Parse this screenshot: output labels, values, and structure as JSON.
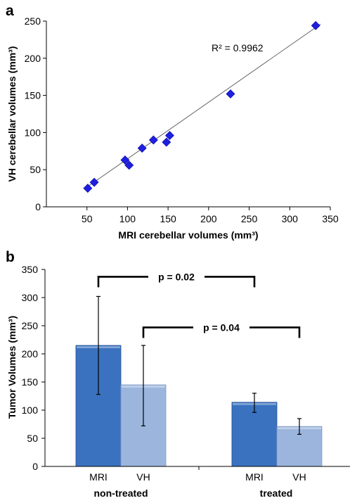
{
  "colors": {
    "scatter_marker": "#1f1fe0",
    "fit_line": "#555555",
    "mri_bar": "#3a72c0",
    "vh_bar": "#9cb5dd",
    "axis": "#000000"
  },
  "chart_data": [
    {
      "panel_label": "a",
      "type": "scatter",
      "xlabel": "MRI cerebellar volumes (mm³)",
      "ylabel": "VH cerebellar volumes (mm³)",
      "xlim": [
        0,
        350
      ],
      "ylim": [
        0,
        250
      ],
      "xticks": [
        50,
        100,
        150,
        200,
        250,
        300,
        350
      ],
      "yticks": [
        0,
        50,
        100,
        150,
        200,
        250
      ],
      "points": [
        {
          "x": 51,
          "y": 25
        },
        {
          "x": 59,
          "y": 33
        },
        {
          "x": 97,
          "y": 63
        },
        {
          "x": 102,
          "y": 56
        },
        {
          "x": 118,
          "y": 79
        },
        {
          "x": 132,
          "y": 90
        },
        {
          "x": 148,
          "y": 87
        },
        {
          "x": 152,
          "y": 96
        },
        {
          "x": 227,
          "y": 152
        },
        {
          "x": 332,
          "y": 244
        }
      ],
      "fit_line": {
        "x": [
          48,
          338
        ],
        "y": [
          25,
          246
        ]
      },
      "annotation": "R² = 0.9962",
      "grid": false
    },
    {
      "panel_label": "b",
      "type": "bar",
      "ylabel": "Tumor Volumes (mm³)",
      "ylim": [
        0,
        350
      ],
      "yticks": [
        0,
        50,
        100,
        150,
        200,
        250,
        300,
        350
      ],
      "groups": [
        "non-treated",
        "treated"
      ],
      "bar_labels": [
        "MRI",
        "VH"
      ],
      "series": [
        {
          "name": "MRI",
          "values": [
            215,
            114
          ],
          "err_low": [
            128,
            96
          ],
          "err_high": [
            302,
            130
          ]
        },
        {
          "name": "VH",
          "values": [
            145,
            71
          ],
          "err_low": [
            72,
            57
          ],
          "err_high": [
            215,
            85
          ]
        }
      ],
      "annotations": [
        {
          "text": "p = 0.02",
          "bracket_y": 337
        },
        {
          "text": "p = 0.04",
          "bracket_y": 247
        }
      ],
      "grid": false
    }
  ]
}
